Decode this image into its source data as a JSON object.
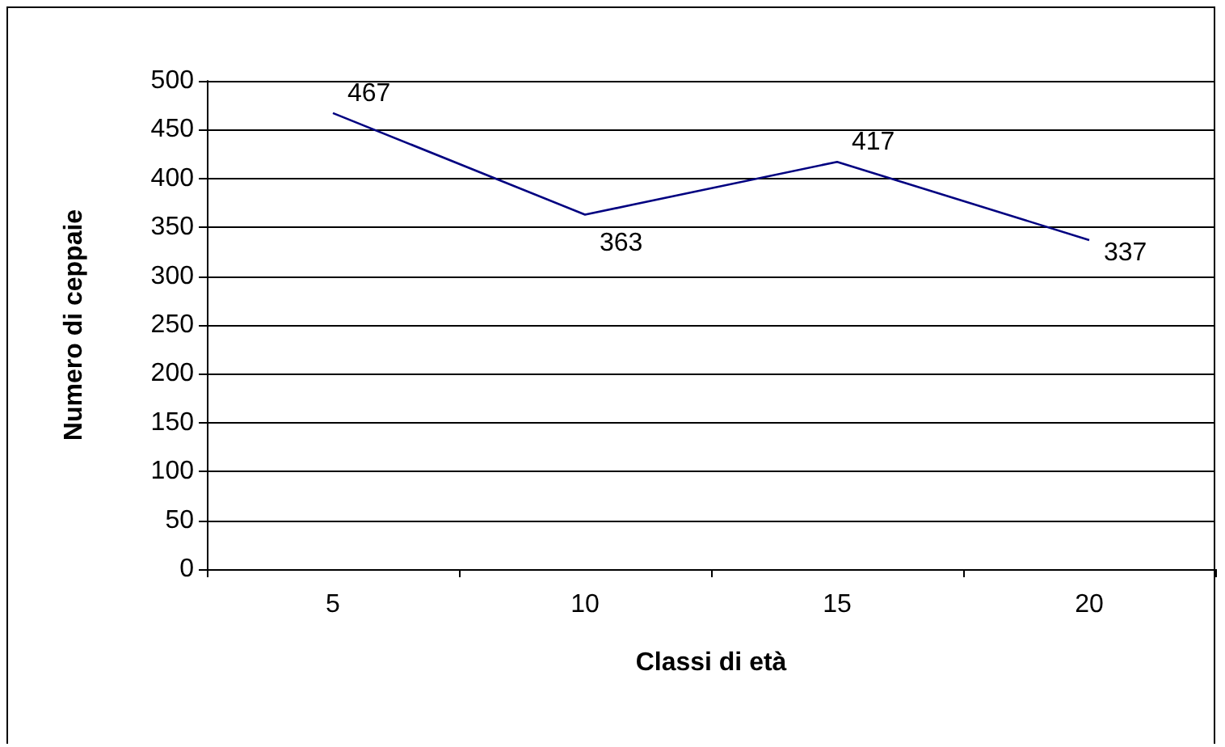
{
  "chart_data": {
    "type": "line",
    "xlabel": "Classi di età",
    "ylabel": "Numero di ceppaie",
    "categories": [
      "5",
      "10",
      "15",
      "20"
    ],
    "series": [
      {
        "color": "#000080",
        "values": [
          467,
          363,
          417,
          337
        ]
      }
    ],
    "ylim": [
      0,
      500
    ],
    "yticks": [
      0,
      50,
      100,
      150,
      200,
      250,
      300,
      350,
      400,
      450,
      500
    ],
    "grid": "y",
    "data_labels": true,
    "marker": "none",
    "line_style": "solid"
  }
}
